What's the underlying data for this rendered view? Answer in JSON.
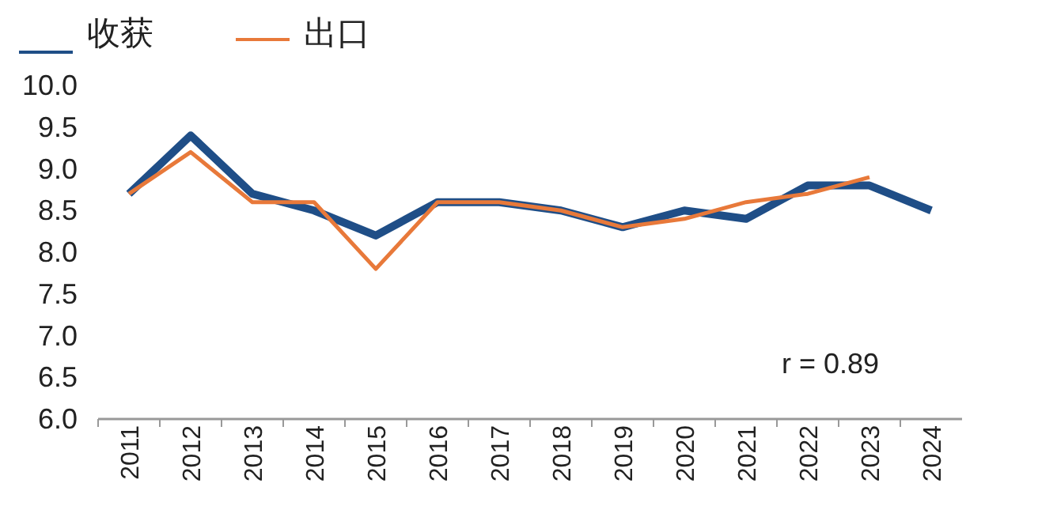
{
  "chart_data": {
    "type": "line",
    "categories": [
      "2011",
      "2012",
      "2013",
      "2014",
      "2015",
      "2016",
      "2017",
      "2018",
      "2019",
      "2020",
      "2021",
      "2022",
      "2023",
      "2024"
    ],
    "series": [
      {
        "name": "收获",
        "color": "#1f4e87",
        "values": [
          8.7,
          9.4,
          8.7,
          8.5,
          8.2,
          8.6,
          8.6,
          8.5,
          8.3,
          8.5,
          8.4,
          8.8,
          8.8,
          8.5
        ]
      },
      {
        "name": "出口",
        "color": "#e8793a",
        "values": [
          8.7,
          9.2,
          8.6,
          8.6,
          7.8,
          8.6,
          8.6,
          8.5,
          8.3,
          8.4,
          8.6,
          8.7,
          8.9,
          null
        ]
      }
    ],
    "ylim": [
      6.0,
      10.0
    ],
    "yticks": [
      {
        "value": 6,
        "label": "6.0"
      },
      {
        "value": 6.5,
        "label": "6.5"
      },
      {
        "value": 7,
        "label": "7.0"
      },
      {
        "value": 7.5,
        "label": "7.5"
      },
      {
        "value": 8,
        "label": "8.0"
      },
      {
        "value": 8.5,
        "label": "8.5"
      },
      {
        "value": 9,
        "label": "9.0"
      },
      {
        "value": 9.5,
        "label": "9.5"
      },
      {
        "value": 10,
        "label": "10.0"
      }
    ],
    "annotations": [
      "r = 0.89"
    ],
    "grid": false,
    "legend": "top left",
    "marker": "none",
    "line_style": "solid"
  }
}
